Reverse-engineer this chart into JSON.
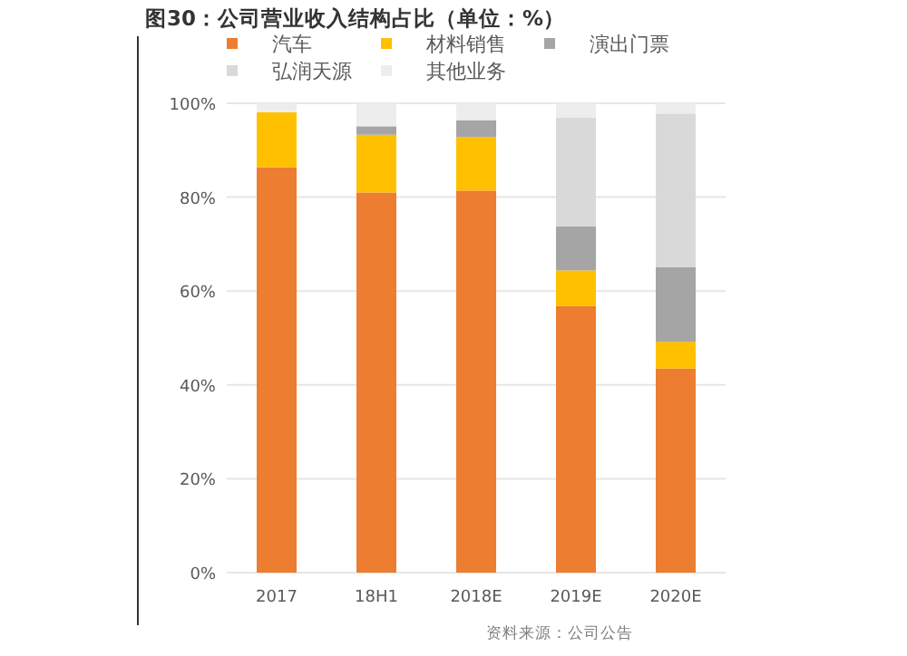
{
  "chart_data": {
    "type": "bar",
    "stacked": true,
    "title": "图30：公司营业收入结构占比（单位：%）",
    "categories": [
      "2017",
      "18H1",
      "2018E",
      "2019E",
      "2020E"
    ],
    "series": [
      {
        "name": "汽车",
        "color": "#ed7d31",
        "values": [
          86.4,
          81.0,
          81.4,
          56.8,
          43.5
        ]
      },
      {
        "name": "材料销售",
        "color": "#ffc000",
        "values": [
          11.7,
          12.3,
          11.4,
          7.6,
          5.7
        ]
      },
      {
        "name": "演出门票",
        "color": "#a5a5a5",
        "values": [
          null,
          1.8,
          3.6,
          9.4,
          15.9
        ]
      },
      {
        "name": "弘润天源",
        "color": "#d9d9d9",
        "values": [
          null,
          null,
          null,
          23.1,
          32.7
        ]
      },
      {
        "name": "其他业务",
        "color": "#ededed",
        "values": [
          1.9,
          4.9,
          3.6,
          3.1,
          2.2
        ]
      }
    ],
    "ylim": [
      0,
      100
    ],
    "yticks": [
      {
        "value": 0,
        "label": "0%"
      },
      {
        "value": 20,
        "label": "20%"
      },
      {
        "value": 40,
        "label": "40%"
      },
      {
        "value": 60,
        "label": "60%"
      },
      {
        "value": 80,
        "label": "80%"
      },
      {
        "value": 100,
        "label": "100%"
      }
    ],
    "grid": "y",
    "legend": "top",
    "annotations": [
      "资料来源：公司公告"
    ]
  }
}
